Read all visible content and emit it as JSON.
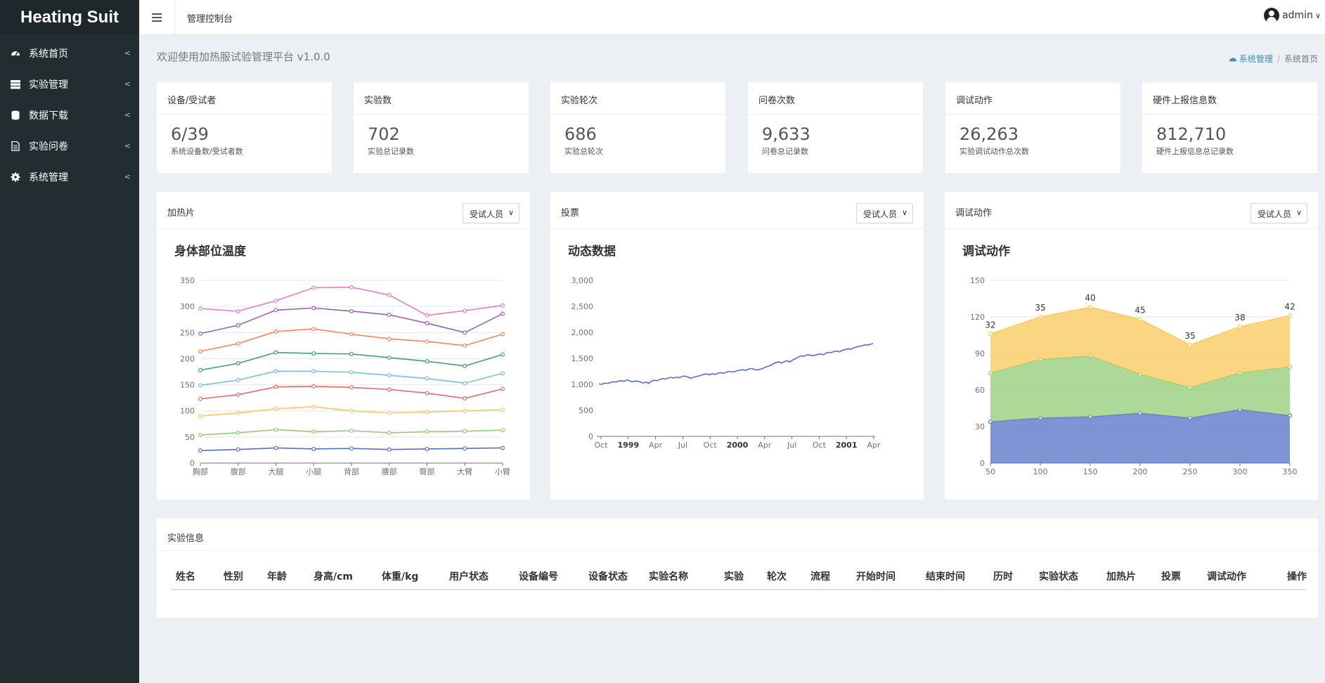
{
  "app": {
    "logo": "Heating Suit"
  },
  "sidebar": {
    "items": [
      {
        "label": "系统首页",
        "icon": "dashboard-icon"
      },
      {
        "label": "实验管理",
        "icon": "server-icon"
      },
      {
        "label": "数据下载",
        "icon": "database-icon"
      },
      {
        "label": "实验问卷",
        "icon": "file-icon"
      },
      {
        "label": "系统管理",
        "icon": "gear-icon"
      }
    ]
  },
  "header": {
    "title": "管理控制台",
    "user": "admin"
  },
  "page": {
    "welcome": "欢迎使用加热服试验管理平台 v1.0.0"
  },
  "breadcrumb": {
    "parent": "系统管理",
    "current": "系统首页"
  },
  "stats": [
    {
      "title": "设备/受试者",
      "value": "6/39",
      "sub": "系统设备数/受试者数"
    },
    {
      "title": "实验数",
      "value": "702",
      "sub": "实验总记录数"
    },
    {
      "title": "实验轮次",
      "value": "686",
      "sub": "实验总轮次"
    },
    {
      "title": "问卷次数",
      "value": "9,633",
      "sub": "问卷总记录数"
    },
    {
      "title": "调试动作",
      "value": "26,263",
      "sub": "实验调试动作总次数"
    },
    {
      "title": "硬件上报信息数",
      "value": "812,710",
      "sub": "硬件上报信息总记录数"
    }
  ],
  "panels": [
    {
      "title": "加热片",
      "select": "受试人员",
      "chart_title": "身体部位温度"
    },
    {
      "title": "投票",
      "select": "受试人员",
      "chart_title": "动态数据"
    },
    {
      "title": "调试动作",
      "select": "受试人员",
      "chart_title": "调试动作"
    }
  ],
  "table": {
    "title": "实验信息",
    "columns": [
      "姓名",
      "性别",
      "年龄",
      "身高/cm",
      "体重/kg",
      "用户状态",
      "设备编号",
      "设备状态",
      "实验名称",
      "实验",
      "轮次",
      "流程",
      "开始时间",
      "结束时间",
      "历时",
      "实验状态",
      "加热片",
      "投票",
      "调试动作",
      "操作"
    ],
    "rows": []
  },
  "colors": {
    "sidebar": "#222d32",
    "accent": "#3c8dbc",
    "background": "#ecf0f5"
  },
  "chart_data": [
    {
      "type": "line",
      "title": "身体部位温度",
      "categories": [
        "胸部",
        "腹部",
        "大腿",
        "小腿",
        "背部",
        "腰部",
        "臀部",
        "大臂",
        "小臂"
      ],
      "ylim": [
        0,
        350
      ],
      "yticks": [
        0,
        50,
        100,
        150,
        200,
        250,
        300,
        350
      ],
      "grid": true,
      "series": [
        {
          "color": "#5470c6",
          "values": [
            24,
            26,
            29,
            27,
            28,
            26,
            27,
            28,
            29
          ]
        },
        {
          "color": "#91cc75",
          "values": [
            54,
            58,
            64,
            60,
            62,
            58,
            60,
            61,
            63
          ]
        },
        {
          "color": "#fac858",
          "values": [
            90,
            96,
            104,
            108,
            100,
            96,
            98,
            100,
            102
          ]
        },
        {
          "color": "#ee6666",
          "values": [
            123,
            131,
            146,
            147,
            145,
            141,
            134,
            124,
            142
          ]
        },
        {
          "color": "#73c0de",
          "values": [
            149,
            159,
            176,
            176,
            174,
            168,
            162,
            153,
            172
          ]
        },
        {
          "color": "#3ba272",
          "values": [
            178,
            191,
            212,
            210,
            209,
            202,
            195,
            186,
            208
          ]
        },
        {
          "color": "#fc8452",
          "values": [
            214,
            229,
            252,
            257,
            247,
            238,
            233,
            225,
            247
          ]
        },
        {
          "color": "#9a60b4",
          "values": [
            248,
            264,
            293,
            297,
            291,
            284,
            268,
            250,
            286
          ]
        },
        {
          "color": "#ea7ccc",
          "values": [
            296,
            291,
            311,
            336,
            337,
            322,
            283,
            292,
            302
          ]
        }
      ]
    },
    {
      "type": "line",
      "title": "动态数据",
      "x_labels": [
        "Oct",
        "1999",
        "Apr",
        "Jul",
        "Oct",
        "2000",
        "Apr",
        "Jul",
        "Oct",
        "2001",
        "Apr"
      ],
      "ylim": [
        0,
        3000
      ],
      "yticks": [
        0,
        500,
        1000,
        1500,
        2000,
        2500,
        3000
      ],
      "series": [
        {
          "color": "#5470c6",
          "values": [
            1010,
            1000,
            1025,
            1020,
            1030,
            1050,
            1045,
            1060,
            1075,
            1055,
            1085,
            1070,
            1045,
            1065,
            1060,
            1050,
            1025,
            1045,
            1020,
            1060,
            1080,
            1070,
            1095,
            1110,
            1100,
            1125,
            1135,
            1120,
            1140,
            1130,
            1150,
            1160,
            1145,
            1120,
            1130,
            1150,
            1160,
            1175,
            1195,
            1200,
            1185,
            1205,
            1190,
            1215,
            1225,
            1210,
            1235,
            1250,
            1245,
            1240,
            1265,
            1275,
            1280,
            1270,
            1290,
            1305,
            1290,
            1275,
            1290,
            1300,
            1330,
            1345,
            1365,
            1395,
            1420,
            1435,
            1410,
            1440,
            1455,
            1430,
            1470,
            1495,
            1525,
            1550,
            1540,
            1565,
            1570,
            1550,
            1560,
            1575,
            1585,
            1570,
            1600,
            1615,
            1610,
            1635,
            1640,
            1625,
            1660,
            1670,
            1685,
            1675,
            1705,
            1715,
            1735,
            1740,
            1760,
            1755,
            1770,
            1785
          ]
        }
      ]
    },
    {
      "type": "area",
      "title": "调试动作",
      "x": [
        50,
        100,
        150,
        200,
        250,
        300,
        350
      ],
      "ylim": [
        0,
        150
      ],
      "yticks": [
        0,
        30,
        60,
        90,
        120,
        150
      ],
      "stacked": true,
      "series": [
        {
          "color": "#5470c6",
          "values": [
            34,
            37,
            38,
            41,
            37,
            44,
            39
          ]
        },
        {
          "color": "#91cc75",
          "values": [
            40,
            48,
            50,
            32,
            25,
            30,
            40
          ]
        },
        {
          "color": "#fac858",
          "values": [
            32,
            35,
            40,
            45,
            35,
            38,
            42
          ],
          "labels": [
            32,
            35,
            40,
            45,
            35,
            38,
            42
          ]
        }
      ]
    }
  ]
}
